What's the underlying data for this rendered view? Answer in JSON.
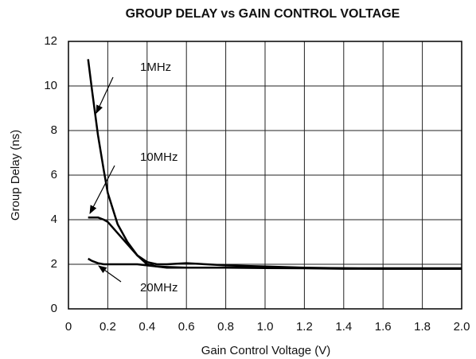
{
  "chart_data": {
    "type": "line",
    "title": "GROUP DELAY vs GAIN CONTROL VOLTAGE",
    "xlabel": "Gain Control Voltage (V)",
    "ylabel": "Group Delay (ns)",
    "x": [
      0.1,
      0.12,
      0.15,
      0.18,
      0.2,
      0.25,
      0.3,
      0.35,
      0.4,
      0.45,
      0.5,
      0.6,
      0.7,
      0.8,
      1.0,
      1.2,
      1.4,
      1.6,
      1.8,
      2.0
    ],
    "series": [
      {
        "name": "1MHz",
        "color": "#000000",
        "values": [
          11.2,
          9.8,
          7.8,
          6.2,
          5.2,
          3.8,
          3.0,
          2.4,
          2.1,
          2.0,
          2.0,
          2.05,
          2.0,
          1.95,
          1.9,
          1.85,
          1.82,
          1.82,
          1.82,
          1.82
        ]
      },
      {
        "name": "10MHz",
        "color": "#000000",
        "values": [
          4.1,
          4.1,
          4.1,
          4.0,
          3.9,
          3.4,
          2.9,
          2.4,
          2.0,
          1.9,
          1.85,
          1.85,
          1.85,
          1.85,
          1.83,
          1.82,
          1.8,
          1.8,
          1.8,
          1.8
        ]
      },
      {
        "name": "20MHz",
        "color": "#000000",
        "values": [
          2.25,
          2.15,
          2.05,
          2.0,
          2.0,
          2.0,
          2.0,
          2.0,
          1.95,
          1.9,
          1.88,
          1.85,
          1.85,
          1.85,
          1.85,
          1.83,
          1.82,
          1.8,
          1.8,
          1.8
        ]
      }
    ],
    "xlim": [
      0,
      2
    ],
    "xticks": [
      0,
      0.2,
      0.4,
      0.6,
      0.8,
      {
        "value": 1,
        "label": "1.0"
      },
      1.2,
      1.4,
      1.6,
      1.8,
      {
        "value": 2,
        "label": "2.0"
      }
    ],
    "ylim": [
      0,
      12
    ],
    "yticks": [
      0,
      2,
      4,
      6,
      8,
      10,
      12
    ],
    "grid": true
  }
}
